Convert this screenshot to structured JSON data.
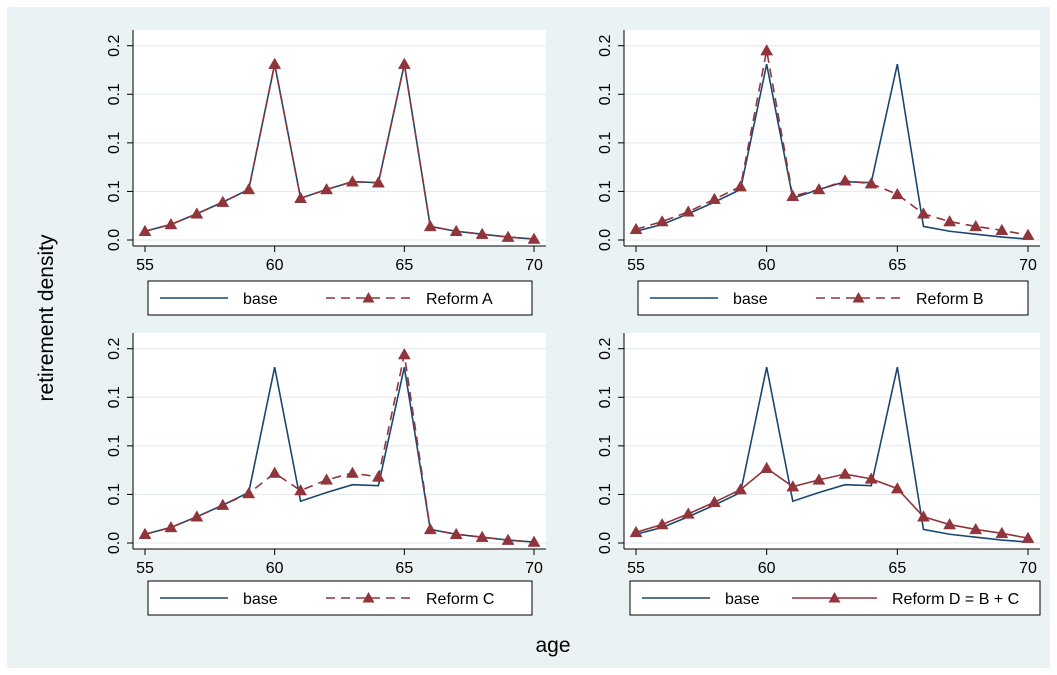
{
  "colors": {
    "background": "#eaf2f3",
    "plot_bg": "#ffffff",
    "base": "#1a476f",
    "reform": "#90353b"
  },
  "chart_data": {
    "type": "line",
    "xlabel": "age",
    "ylabel": "retirement density",
    "grid": true,
    "xlim": [
      55,
      70
    ],
    "ylim": [
      0.0,
      0.21
    ],
    "x_ticks": [
      "55",
      "60",
      "65",
      "70"
    ],
    "y_ticks": [
      "0.0",
      "0.1",
      "0.1",
      "0.1",
      "0.2"
    ],
    "y_tick_values": [
      0.0,
      0.05,
      0.1,
      0.15,
      0.2
    ],
    "x": [
      55,
      56,
      57,
      58,
      59,
      60,
      61,
      62,
      63,
      64,
      65,
      66,
      67,
      68,
      69,
      70
    ],
    "base": [
      0.009,
      0.016,
      0.027,
      0.039,
      0.052,
      0.181,
      0.043,
      0.052,
      0.06,
      0.059,
      0.181,
      0.014,
      0.009,
      0.006,
      0.003,
      0.001
    ],
    "panels": [
      {
        "series": [
          {
            "name": "base",
            "style": "solid"
          },
          {
            "name": "Reform A",
            "style": "dash-triangle",
            "values": [
              0.009,
              0.016,
              0.027,
              0.039,
              0.052,
              0.181,
              0.043,
              0.052,
              0.06,
              0.059,
              0.181,
              0.014,
              0.009,
              0.006,
              0.003,
              0.001
            ]
          }
        ]
      },
      {
        "series": [
          {
            "name": "base",
            "style": "solid"
          },
          {
            "name": "Reform B",
            "style": "dash-triangle",
            "values": [
              0.011,
              0.019,
              0.029,
              0.042,
              0.055,
              0.195,
              0.045,
              0.052,
              0.061,
              0.058,
              0.047,
              0.027,
              0.019,
              0.014,
              0.01,
              0.005
            ]
          }
        ]
      },
      {
        "series": [
          {
            "name": "base",
            "style": "solid"
          },
          {
            "name": "Reform C",
            "style": "dash-triangle",
            "values": [
              0.009,
              0.016,
              0.027,
              0.039,
              0.051,
              0.072,
              0.054,
              0.065,
              0.072,
              0.068,
              0.194,
              0.014,
              0.009,
              0.006,
              0.003,
              0.001
            ]
          }
        ]
      },
      {
        "series": [
          {
            "name": "base",
            "style": "solid"
          },
          {
            "name": "Reform D = B + C",
            "style": "solid-triangle",
            "values": [
              0.011,
              0.019,
              0.03,
              0.042,
              0.055,
              0.077,
              0.058,
              0.065,
              0.071,
              0.066,
              0.056,
              0.027,
              0.019,
              0.014,
              0.01,
              0.005
            ]
          }
        ]
      }
    ]
  }
}
